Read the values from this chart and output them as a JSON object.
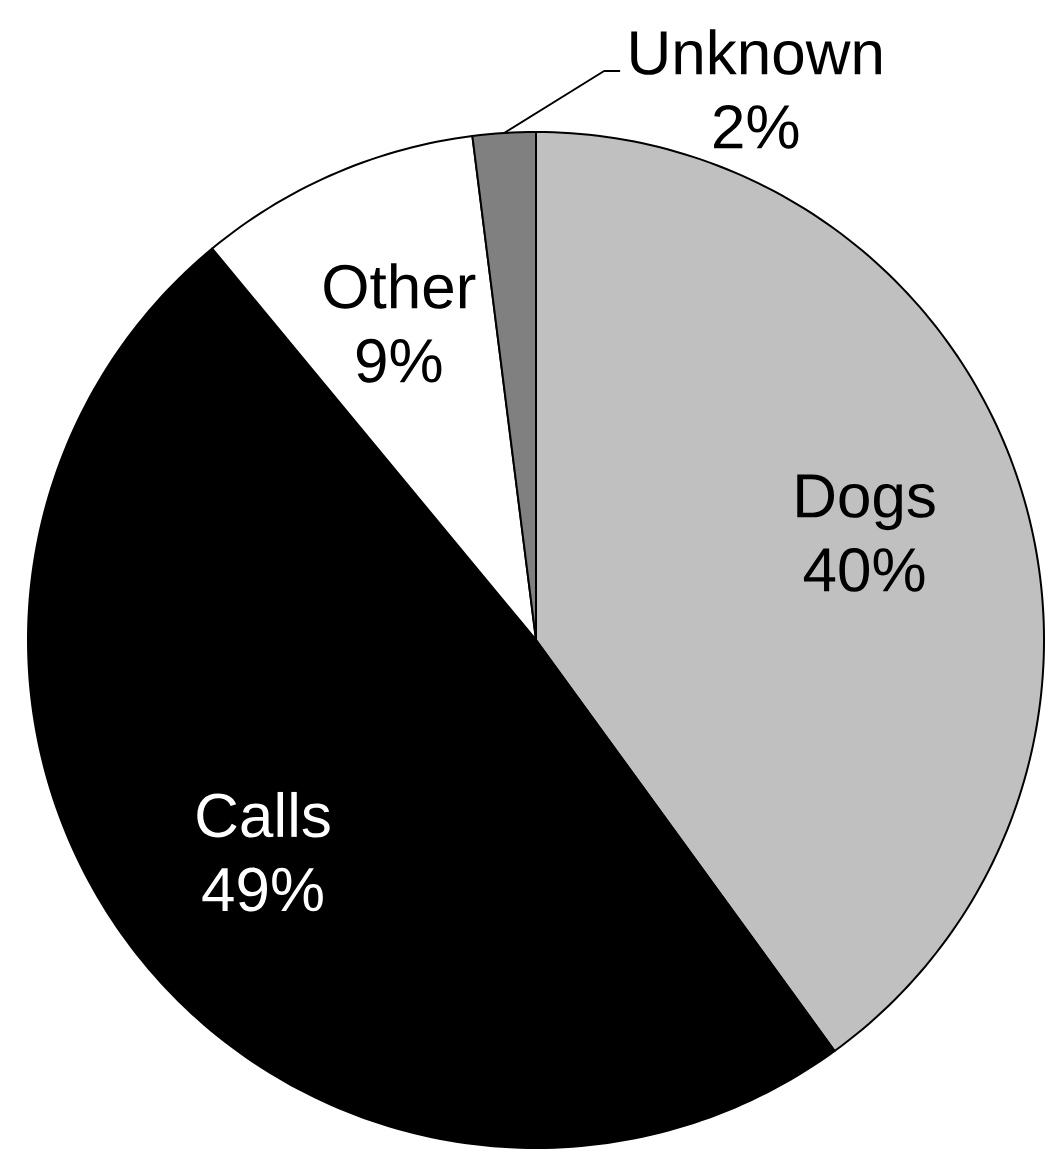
{
  "chart_data": {
    "type": "pie",
    "categories": [
      "Dogs",
      "Calls",
      "Other",
      "Unknown"
    ],
    "values": [
      40,
      49,
      9,
      2
    ],
    "value_labels": [
      "40%",
      "49%",
      "9%",
      "2%"
    ],
    "colors": [
      "#c0c0c0",
      "#000000",
      "#ffffff",
      "#808080"
    ]
  }
}
